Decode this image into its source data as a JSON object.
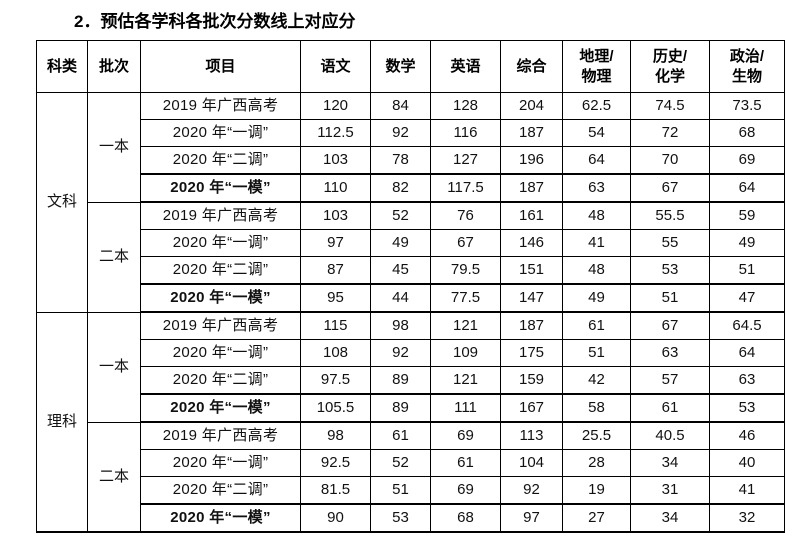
{
  "title": "2．预估各学科各批次分数线上对应分",
  "table": {
    "headers": [
      "科类",
      "批次",
      "项目",
      "语文",
      "数学",
      "英语",
      "综合",
      "地理/\n物理",
      "历史/\n化学",
      "政治/\n生物"
    ],
    "groups": [
      {
        "category": "文科",
        "batches": [
          {
            "batch": "一本",
            "rows": [
              {
                "label": "2019 年广西高考",
                "bold": false,
                "values": [
                  "120",
                  "84",
                  "128",
                  "204",
                  "62.5",
                  "74.5",
                  "73.5"
                ]
              },
              {
                "label": "2020 年“一调”",
                "bold": false,
                "values": [
                  "112.5",
                  "92",
                  "116",
                  "187",
                  "54",
                  "72",
                  "68"
                ]
              },
              {
                "label": "2020 年“二调”",
                "bold": false,
                "values": [
                  "103",
                  "78",
                  "127",
                  "196",
                  "64",
                  "70",
                  "69"
                ]
              },
              {
                "label": "2020 年“一模”",
                "bold": true,
                "values": [
                  "110",
                  "82",
                  "117.5",
                  "187",
                  "63",
                  "67",
                  "64"
                ]
              }
            ]
          },
          {
            "batch": "二本",
            "rows": [
              {
                "label": "2019 年广西高考",
                "bold": false,
                "values": [
                  "103",
                  "52",
                  "76",
                  "161",
                  "48",
                  "55.5",
                  "59"
                ]
              },
              {
                "label": "2020 年“一调”",
                "bold": false,
                "values": [
                  "97",
                  "49",
                  "67",
                  "146",
                  "41",
                  "55",
                  "49"
                ]
              },
              {
                "label": "2020 年“二调”",
                "bold": false,
                "values": [
                  "87",
                  "45",
                  "79.5",
                  "151",
                  "48",
                  "53",
                  "51"
                ]
              },
              {
                "label": "2020 年“一模”",
                "bold": true,
                "values": [
                  "95",
                  "44",
                  "77.5",
                  "147",
                  "49",
                  "51",
                  "47"
                ]
              }
            ]
          }
        ]
      },
      {
        "category": "理科",
        "batches": [
          {
            "batch": "一本",
            "rows": [
              {
                "label": "2019 年广西高考",
                "bold": false,
                "values": [
                  "115",
                  "98",
                  "121",
                  "187",
                  "61",
                  "67",
                  "64.5"
                ]
              },
              {
                "label": "2020 年“一调”",
                "bold": false,
                "values": [
                  "108",
                  "92",
                  "109",
                  "175",
                  "51",
                  "63",
                  "64"
                ]
              },
              {
                "label": "2020 年“二调”",
                "bold": false,
                "values": [
                  "97.5",
                  "89",
                  "121",
                  "159",
                  "42",
                  "57",
                  "63"
                ]
              },
              {
                "label": "2020 年“一模”",
                "bold": true,
                "values": [
                  "105.5",
                  "89",
                  "111",
                  "167",
                  "58",
                  "61",
                  "53"
                ]
              }
            ]
          },
          {
            "batch": "二本",
            "rows": [
              {
                "label": "2019 年广西高考",
                "bold": false,
                "values": [
                  "98",
                  "61",
                  "69",
                  "113",
                  "25.5",
                  "40.5",
                  "46"
                ]
              },
              {
                "label": "2020 年“一调”",
                "bold": false,
                "values": [
                  "92.5",
                  "52",
                  "61",
                  "104",
                  "28",
                  "34",
                  "40"
                ]
              },
              {
                "label": "2020 年“二调”",
                "bold": false,
                "values": [
                  "81.5",
                  "51",
                  "69",
                  "92",
                  "19",
                  "31",
                  "41"
                ]
              },
              {
                "label": "2020 年“一模”",
                "bold": true,
                "values": [
                  "90",
                  "53",
                  "68",
                  "97",
                  "27",
                  "34",
                  "32"
                ]
              }
            ]
          }
        ]
      }
    ]
  }
}
